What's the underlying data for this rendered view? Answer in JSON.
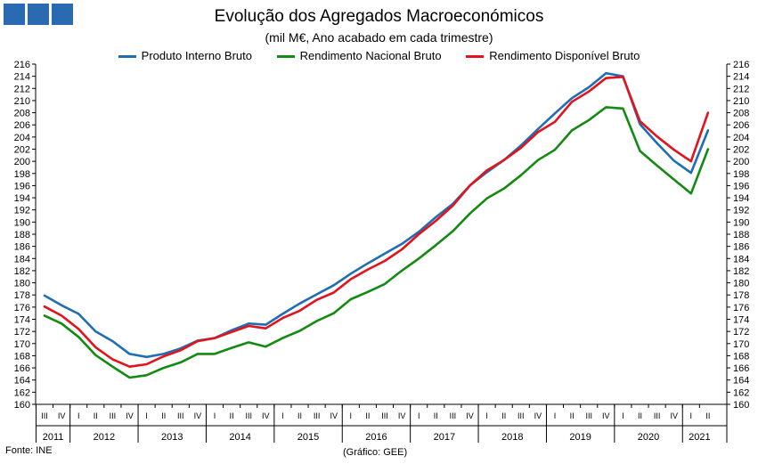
{
  "header": {
    "title": "Evolução dos Agregados Macroeconómicos",
    "subtitle": "(mil M€, Ano acabado em cada trimestre)",
    "logo_colors": [
      "#2a6ab3",
      "#2a6ab3",
      "#2a6ab3"
    ]
  },
  "footer": {
    "source": "Fonte: INE",
    "credit": "(Gráfico: GEE)"
  },
  "chart_data": {
    "type": "line",
    "title": "Evolução dos Agregados Macroeconómicos",
    "subtitle": "(mil M€, Ano acabado em cada trimestre)",
    "ylim": [
      160,
      216
    ],
    "ytick_step": 2,
    "y_axes": [
      "left",
      "right"
    ],
    "grid": false,
    "legend_position": "top",
    "x": [
      "III",
      "IV",
      "I",
      "II",
      "III",
      "IV",
      "I",
      "II",
      "III",
      "IV",
      "I",
      "II",
      "III",
      "IV",
      "I",
      "II",
      "III",
      "IV",
      "I",
      "II",
      "III",
      "IV",
      "I",
      "II",
      "III",
      "IV",
      "I",
      "II",
      "III",
      "IV",
      "I",
      "II",
      "III",
      "IV",
      "I",
      "II",
      "III",
      "IV",
      "I",
      "II"
    ],
    "years": [
      {
        "label": "2011",
        "count": 2
      },
      {
        "label": "2012",
        "count": 4
      },
      {
        "label": "2013",
        "count": 4
      },
      {
        "label": "2014",
        "count": 4
      },
      {
        "label": "2015",
        "count": 4
      },
      {
        "label": "2016",
        "count": 4
      },
      {
        "label": "2017",
        "count": 4
      },
      {
        "label": "2018",
        "count": 4
      },
      {
        "label": "2019",
        "count": 4
      },
      {
        "label": "2020",
        "count": 4
      },
      {
        "label": "2021",
        "count": 2
      }
    ],
    "series": [
      {
        "name": "Produto Interno Bruto",
        "color": "#1f6db5",
        "values": [
          177.9,
          176.3,
          174.9,
          172.0,
          170.4,
          168.3,
          167.8,
          168.3,
          169.2,
          170.5,
          170.9,
          172.2,
          173.3,
          173.1,
          174.9,
          176.6,
          178.1,
          179.6,
          181.5,
          183.2,
          184.8,
          186.4,
          188.4,
          190.8,
          193.0,
          196.0,
          198.2,
          200.2,
          202.6,
          205.3,
          207.9,
          210.4,
          212.2,
          214.5,
          214.0,
          206.1,
          203.0,
          200.1,
          198.1,
          205.1
        ]
      },
      {
        "name": "Rendimento Nacional Bruto",
        "color": "#138a12",
        "values": [
          174.6,
          173.3,
          171.1,
          168.1,
          166.2,
          164.4,
          164.8,
          166.0,
          166.9,
          168.3,
          168.3,
          169.3,
          170.2,
          169.5,
          170.9,
          172.1,
          173.7,
          175.0,
          177.3,
          178.5,
          179.8,
          182.0,
          184.0,
          186.2,
          188.5,
          191.4,
          193.9,
          195.5,
          197.7,
          200.2,
          201.9,
          205.1,
          206.8,
          208.9,
          208.7,
          201.7,
          199.3,
          197.0,
          194.7,
          202.0
        ]
      },
      {
        "name": "Rendimento Disponível Bruto",
        "color": "#e3121b",
        "values": [
          176.1,
          174.6,
          172.4,
          169.4,
          167.4,
          166.2,
          166.6,
          167.9,
          168.9,
          170.4,
          170.9,
          171.9,
          172.9,
          172.5,
          174.2,
          175.4,
          177.2,
          178.4,
          180.6,
          182.2,
          183.6,
          185.5,
          188.0,
          190.2,
          192.7,
          196.0,
          198.5,
          200.2,
          202.2,
          204.8,
          206.5,
          209.8,
          211.5,
          213.7,
          213.9,
          206.6,
          204.1,
          201.9,
          200.0,
          208.0
        ]
      }
    ]
  }
}
